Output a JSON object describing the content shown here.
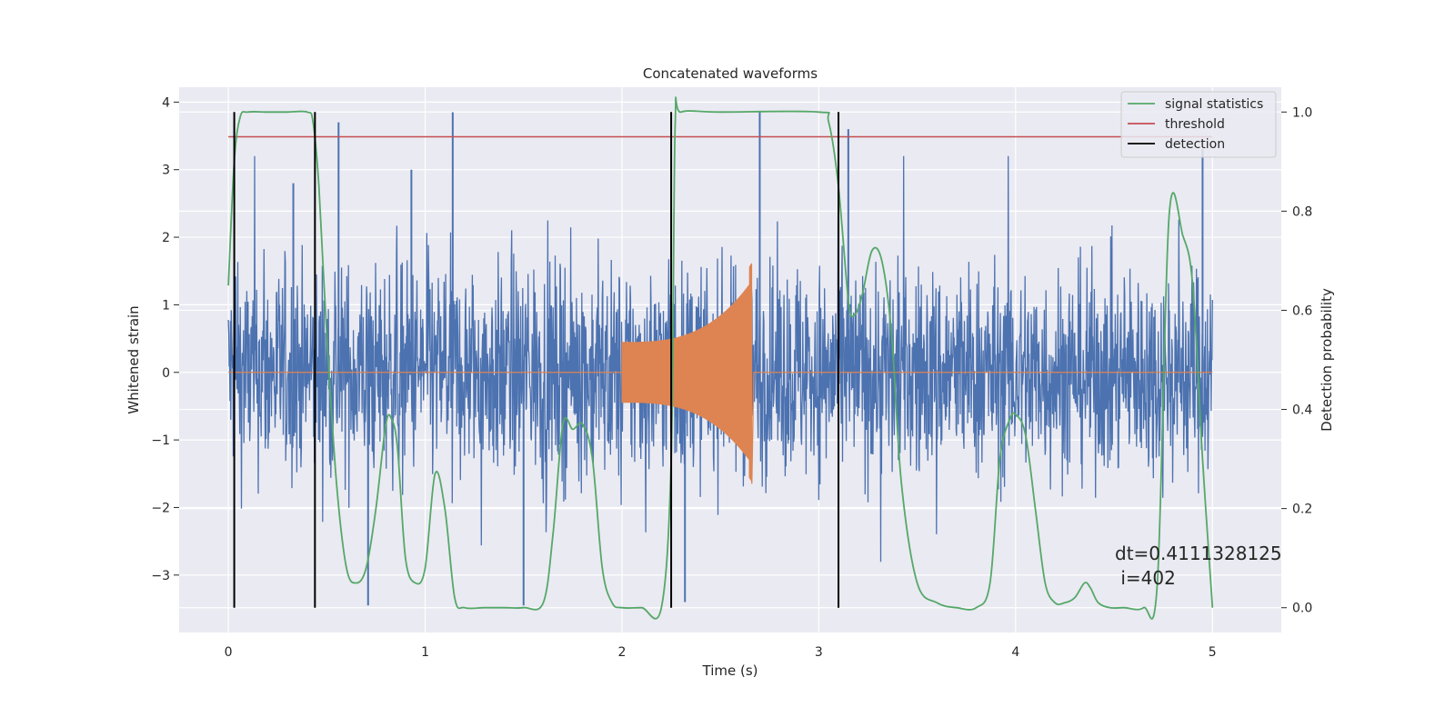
{
  "chart_data": {
    "type": "line",
    "title": "Concatenated waveforms",
    "xlabel": "Time (s)",
    "ylabel_left": "Whitened strain",
    "ylabel_right": "Detection probability",
    "xlim": [
      -0.25,
      5.35
    ],
    "ylim_left": [
      -3.85,
      4.22
    ],
    "ylim_right": [
      -0.05,
      1.05
    ],
    "x_ticks": [
      0,
      1,
      2,
      3,
      4,
      5
    ],
    "x_tick_labels": [
      "0",
      "1",
      "2",
      "3",
      "4",
      "5"
    ],
    "y_left_ticks": [
      -3,
      -2,
      -1,
      0,
      1,
      2,
      3,
      4
    ],
    "y_left_tick_labels": [
      "−3",
      "−2",
      "−1",
      "0",
      "1",
      "2",
      "3",
      "4"
    ],
    "y_right_ticks": [
      0.0,
      0.2,
      0.4,
      0.6,
      0.8,
      1.0
    ],
    "y_right_tick_labels": [
      "0.0",
      "0.2",
      "0.4",
      "0.6",
      "0.8",
      "1.0"
    ],
    "grid": true,
    "legend_placement": "upper right",
    "legend": [
      {
        "label": "signal statistics",
        "color": "#55a868"
      },
      {
        "label": "threshold",
        "color": "#c44e52"
      },
      {
        "label": "detection",
        "color": "#000000"
      }
    ],
    "colors": {
      "strain": "#4c72b0",
      "injected_waveform": "#dd8452",
      "signal_statistics": "#55a868",
      "threshold": "#c44e52",
      "detection": "#000000",
      "background": "#eaeaf2"
    },
    "series": [
      {
        "name": "signal statistics",
        "axis": "right",
        "x": [
          0.0,
          0.03,
          0.06,
          0.1,
          0.2,
          0.3,
          0.4,
          0.43,
          0.46,
          0.5,
          0.55,
          0.6,
          0.65,
          0.7,
          0.75,
          0.8,
          0.83,
          0.86,
          0.9,
          0.95,
          1.0,
          1.05,
          1.1,
          1.15,
          1.2,
          1.3,
          1.4,
          1.5,
          1.6,
          1.65,
          1.7,
          1.75,
          1.8,
          1.85,
          1.9,
          1.95,
          2.0,
          2.1,
          2.2,
          2.25,
          2.27,
          2.3,
          2.5,
          3.0,
          3.05,
          3.1,
          3.15,
          3.18,
          3.22,
          3.27,
          3.32,
          3.37,
          3.42,
          3.5,
          3.6,
          3.7,
          3.8,
          3.87,
          3.92,
          3.97,
          4.0,
          4.05,
          4.1,
          4.15,
          4.2,
          4.25,
          4.3,
          4.35,
          4.38,
          4.42,
          4.48,
          4.55,
          4.65,
          4.72,
          4.78,
          4.85,
          4.9,
          4.95,
          5.0
        ],
        "y": [
          0.65,
          0.9,
          0.99,
          1.0,
          1.0,
          1.0,
          1.0,
          0.98,
          0.85,
          0.55,
          0.25,
          0.08,
          0.05,
          0.08,
          0.2,
          0.37,
          0.38,
          0.32,
          0.1,
          0.05,
          0.08,
          0.27,
          0.2,
          0.02,
          0.0,
          0.0,
          0.0,
          0.0,
          0.01,
          0.15,
          0.37,
          0.36,
          0.37,
          0.3,
          0.08,
          0.01,
          0.0,
          0.0,
          0.0,
          0.3,
          0.97,
          1.0,
          1.0,
          1.0,
          0.98,
          0.85,
          0.62,
          0.59,
          0.63,
          0.72,
          0.7,
          0.55,
          0.25,
          0.05,
          0.01,
          0.0,
          0.0,
          0.05,
          0.3,
          0.38,
          0.39,
          0.35,
          0.2,
          0.05,
          0.01,
          0.01,
          0.02,
          0.05,
          0.04,
          0.01,
          0.0,
          0.0,
          0.0,
          0.05,
          0.79,
          0.75,
          0.65,
          0.3,
          0.0
        ]
      },
      {
        "name": "threshold",
        "axis": "right",
        "x": [
          0.0,
          5.0
        ],
        "y": [
          0.95,
          0.95
        ]
      }
    ],
    "detections": [
      0.03,
      0.44,
      2.25,
      3.1
    ],
    "detection_range": [
      0.0,
      1.0
    ],
    "strain": {
      "axis": "left",
      "x_range": [
        0.0,
        5.0
      ],
      "typical_amplitude": 1.2,
      "spike_peaks": [
        {
          "x": 0.56,
          "y": 3.7
        },
        {
          "x": 1.14,
          "y": 3.85
        },
        {
          "x": 2.7,
          "y": 3.85
        },
        {
          "x": 3.15,
          "y": 3.6
        },
        {
          "x": 4.95,
          "y": 3.3
        },
        {
          "x": 0.33,
          "y": 2.8
        },
        {
          "x": 0.93,
          "y": 3.0
        },
        {
          "x": 1.5,
          "y": -3.45
        },
        {
          "x": 0.71,
          "y": -3.45
        },
        {
          "x": 2.32,
          "y": -3.4
        }
      ]
    },
    "injected_waveform": {
      "axis": "left",
      "start": 2.0,
      "end": 2.66,
      "start_amplitude": 0.45,
      "peak_amplitude": 1.35,
      "peak_time": 2.66,
      "peak_min": -1.65
    },
    "annotations": [
      "dt=0.4111328125",
      " i=402"
    ]
  }
}
